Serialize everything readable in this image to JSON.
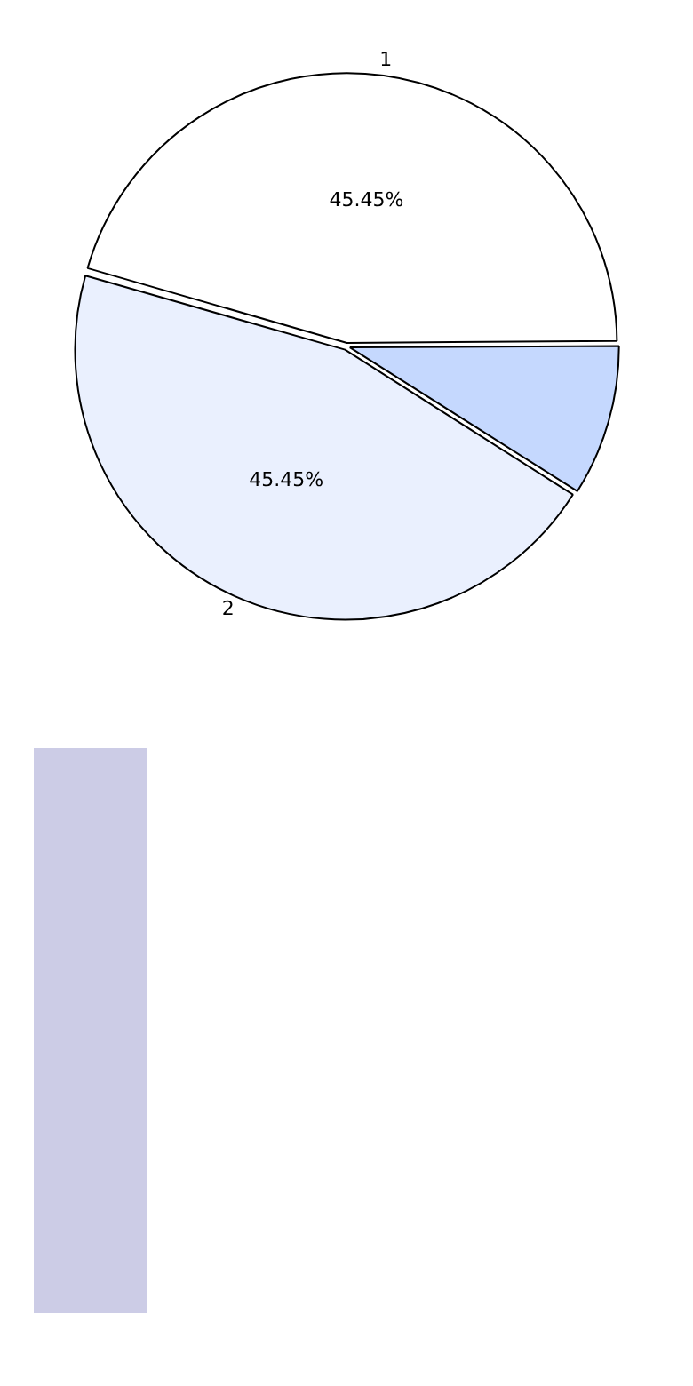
{
  "chart_data": {
    "type": "pie",
    "categories": [
      "1",
      null,
      "2"
    ],
    "values": [
      45.45,
      9.09,
      45.45
    ],
    "colors": [
      "#ffffff",
      "#c5d8fe",
      "#eaf0fe"
    ],
    "value_labels": [
      "45.45%",
      null,
      "45.45%"
    ],
    "legend": false
  }
}
